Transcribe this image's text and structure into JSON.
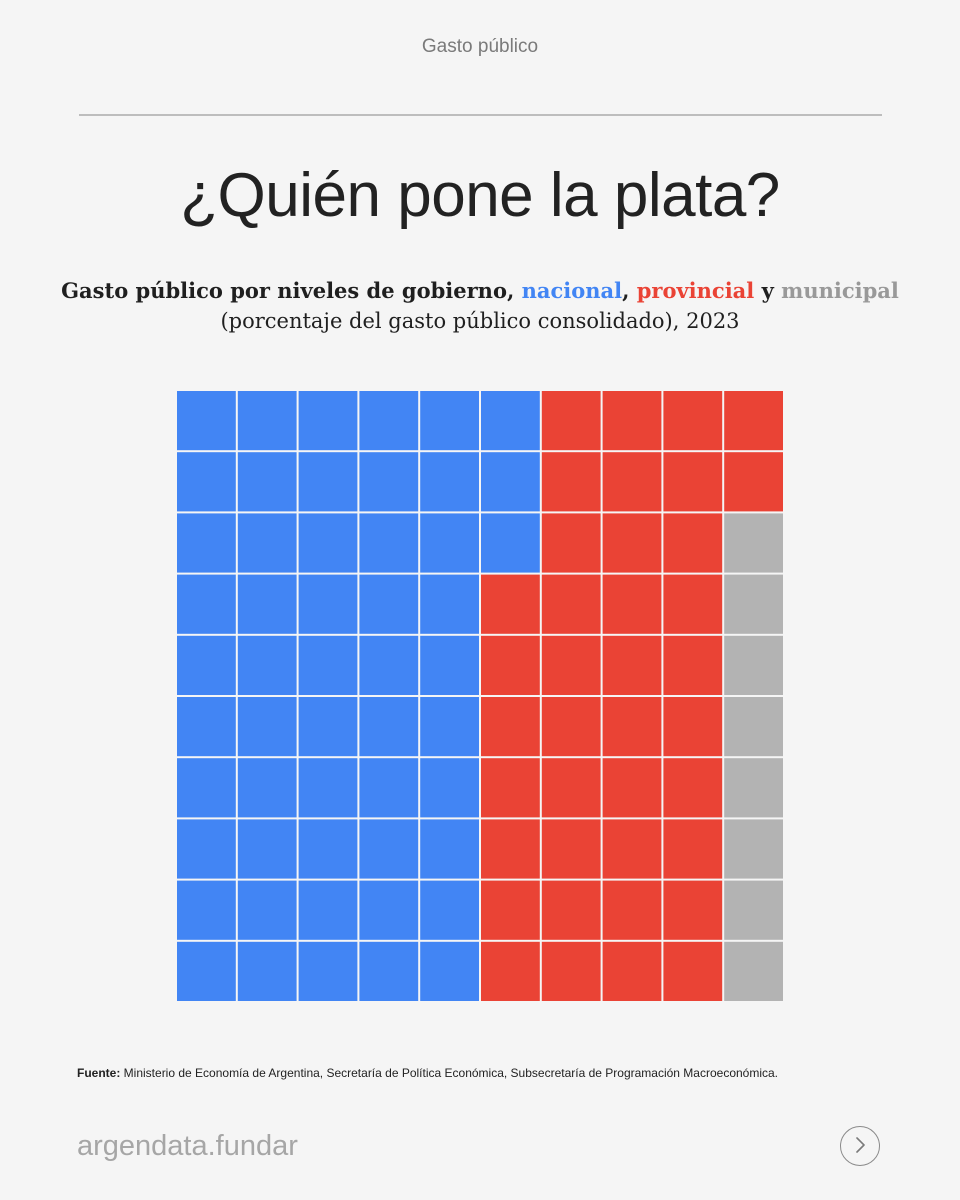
{
  "header": {
    "section": "Gasto público"
  },
  "title": "¿Quién pone la plata?",
  "subtitle": {
    "prefix": "Gasto público por niveles de gobierno, ",
    "nacional": "nacional",
    "comma": ", ",
    "provincial": "provincial",
    "and": " y ",
    "municipal": "municipal",
    "line2": "(porcentaje del gasto público consolidado), 2023"
  },
  "chart_data": {
    "type": "waffle",
    "title": "Gasto público por niveles de gobierno, nacional, provincial y municipal",
    "subtitle": "(porcentaje del gasto público consolidado), 2023",
    "grid": {
      "rows": 10,
      "cols": 10
    },
    "fill_order": "column-major, left to right, top to bottom",
    "series": [
      {
        "name": "nacional",
        "value": 53,
        "color": "#4285f4"
      },
      {
        "name": "provincial",
        "value": 39,
        "color": "#ea4335"
      },
      {
        "name": "municipal",
        "value": 8,
        "color": "#b3b3b3"
      }
    ]
  },
  "source": {
    "label": "Fuente:",
    "text": " Ministerio de Economía de Argentina, Secretaría de Política Económica, Subsecretaría de Programación Macroeconómica."
  },
  "footer": {
    "brand": "argendata.fundar",
    "next_icon": "chevron-right-icon"
  },
  "colors": {
    "nacional": "#4285f4",
    "provincial": "#ea4335",
    "municipal": "#999999"
  }
}
